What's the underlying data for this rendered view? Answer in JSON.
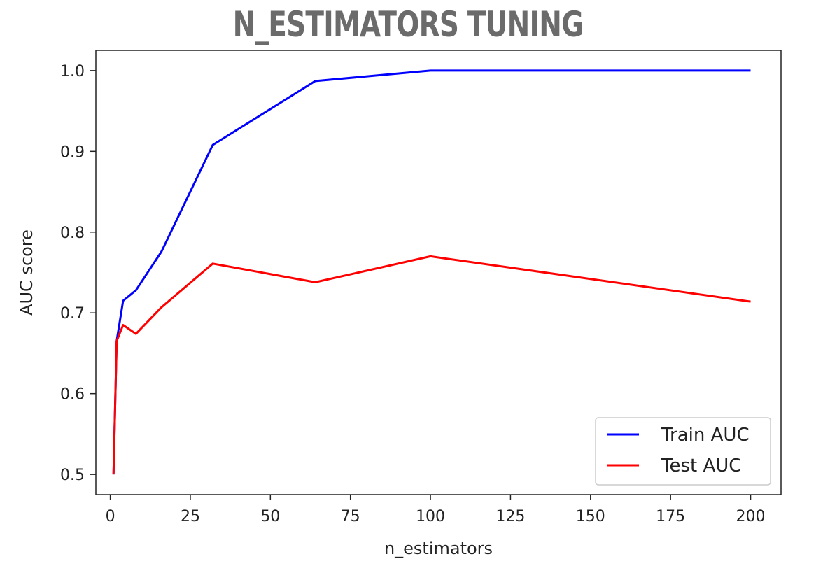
{
  "title": "N_ESTIMATORS TUNING",
  "chart_data": {
    "type": "line",
    "title": "",
    "xlabel": "n_estimators",
    "ylabel": "AUC score",
    "xlim": [
      -4.5,
      209.5
    ],
    "ylim": [
      0.475,
      1.025
    ],
    "xticks": [
      0,
      25,
      50,
      75,
      100,
      125,
      150,
      175,
      200
    ],
    "xtick_labels": [
      "0",
      "25",
      "50",
      "75",
      "100",
      "125",
      "150",
      "175",
      "200"
    ],
    "yticks": [
      0.5,
      0.6,
      0.7,
      0.8,
      0.9,
      1.0
    ],
    "ytick_labels": [
      "0.5",
      "0.6",
      "0.7",
      "0.8",
      "0.9",
      "1.0"
    ],
    "grid": false,
    "legend_position": "lower-right",
    "x": [
      1,
      2,
      4,
      8,
      16,
      32,
      64,
      100,
      200
    ],
    "series": [
      {
        "name": "Train AUC",
        "color": "#0000ff",
        "values": [
          0.5,
          0.665,
          0.715,
          0.728,
          0.776,
          0.908,
          0.987,
          1.0,
          1.0
        ]
      },
      {
        "name": "Test AUC",
        "color": "#ff0000",
        "values": [
          0.5,
          0.665,
          0.685,
          0.674,
          0.707,
          0.761,
          0.738,
          0.77,
          0.714
        ]
      }
    ]
  }
}
